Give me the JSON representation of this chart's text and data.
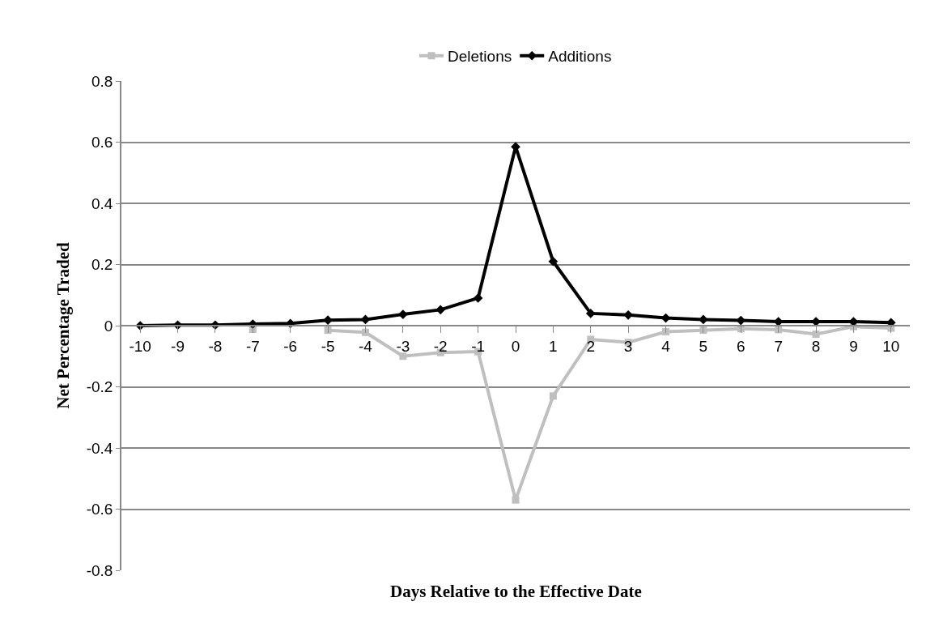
{
  "chart_data": {
    "type": "line",
    "xlabel": "Days Relative to the Effective Date",
    "ylabel": "Net Percentage Traded",
    "categories": [
      "-10",
      "-9",
      "-8",
      "-7",
      "-6",
      "-5",
      "-4",
      "-3",
      "-2",
      "-1",
      "0",
      "1",
      "2",
      "3",
      "4",
      "5",
      "6",
      "7",
      "8",
      "9",
      "10"
    ],
    "series": [
      {
        "name": "Deletions",
        "color": "#bfbfbf",
        "marker": "square",
        "values": [
          null,
          null,
          null,
          -0.012,
          null,
          -0.015,
          -0.022,
          -0.1,
          -0.088,
          -0.085,
          -0.57,
          -0.23,
          -0.045,
          -0.055,
          -0.02,
          -0.015,
          -0.01,
          -0.013,
          -0.028,
          -0.003,
          -0.008
        ]
      },
      {
        "name": "Additions",
        "color": "#000000",
        "marker": "diamond",
        "values": [
          0,
          0.002,
          0.002,
          0.005,
          0.007,
          0.018,
          0.02,
          0.037,
          0.052,
          0.09,
          0.585,
          0.21,
          0.04,
          0.035,
          0.025,
          0.02,
          0.017,
          0.013,
          0.013,
          0.013,
          0.01
        ]
      }
    ],
    "ylim": [
      -0.8,
      0.8
    ],
    "yticks": [
      {
        "value": -0.8,
        "label": "-0.8"
      },
      {
        "value": -0.6,
        "label": "-0.6"
      },
      {
        "value": -0.4,
        "label": "-0.4"
      },
      {
        "value": -0.2,
        "label": "-0.2"
      },
      0,
      {
        "value": 0.2,
        "label": "0.2"
      },
      {
        "value": 0.4,
        "label": "0.4"
      },
      {
        "value": 0.6,
        "label": "0.6"
      },
      {
        "value": 0.8,
        "label": "0.8"
      }
    ],
    "grid": "y",
    "legend": "top",
    "line_style": "solid"
  }
}
